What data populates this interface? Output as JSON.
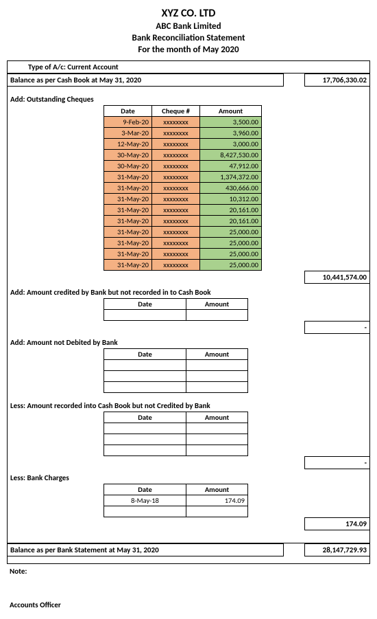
{
  "header": {
    "company": "XYZ CO. LTD",
    "bank": "ABC Bank Limited",
    "title": "Bank Reconciliation Statement",
    "period": "For the month of May 2020"
  },
  "account_type": "Type of A/c: Current Account",
  "opening": {
    "label": "Balance as per Cash Book at May 31, 2020",
    "value": "17,706,330.02"
  },
  "outstanding": {
    "label": "Add: Outstanding Cheques",
    "headers": {
      "date": "Date",
      "cheque": "Cheque #",
      "amount": "Amount"
    },
    "rows": [
      {
        "date": "9-Feb-20",
        "cheque": "xxxxxxxx",
        "amount": "3,500.00"
      },
      {
        "date": "3-Mar-20",
        "cheque": "xxxxxxxx",
        "amount": "3,960.00"
      },
      {
        "date": "12-May-20",
        "cheque": "xxxxxxxx",
        "amount": "3,000.00"
      },
      {
        "date": "30-May-20",
        "cheque": "xxxxxxxx",
        "amount": "8,427,530.00"
      },
      {
        "date": "30-May-20",
        "cheque": "xxxxxxxx",
        "amount": "47,912.00"
      },
      {
        "date": "31-May-20",
        "cheque": "xxxxxxxx",
        "amount": "1,374,372.00"
      },
      {
        "date": "31-May-20",
        "cheque": "xxxxxxxx",
        "amount": "430,666.00"
      },
      {
        "date": "31-May-20",
        "cheque": "xxxxxxxx",
        "amount": "10,312.00"
      },
      {
        "date": "31-May-20",
        "cheque": "xxxxxxxx",
        "amount": "20,161.00"
      },
      {
        "date": "31-May-20",
        "cheque": "xxxxxxxx",
        "amount": "20,161.00"
      },
      {
        "date": "31-May-20",
        "cheque": "xxxxxxxx",
        "amount": "25,000.00"
      },
      {
        "date": "31-May-20",
        "cheque": "xxxxxxxx",
        "amount": "25,000.00"
      },
      {
        "date": "31-May-20",
        "cheque": "xxxxxxxx",
        "amount": "25,000.00"
      },
      {
        "date": "31-May-20",
        "cheque": "xxxxxxxx",
        "amount": "25,000.00"
      }
    ],
    "subtotal": "10,441,574.00"
  },
  "credited_not_recorded": {
    "label": "Add: Amount credited by Bank but not recorded in to Cash Book",
    "headers": {
      "date": "Date",
      "amount": "Amount"
    },
    "subtotal": "-"
  },
  "not_debited": {
    "label": "Add: Amount not Debited by Bank",
    "headers": {
      "date": "Date",
      "amount": "Amount"
    }
  },
  "recorded_not_credited": {
    "label": "Less: Amount recorded into Cash Book but not Credited by Bank",
    "headers": {
      "date": "Date",
      "amount": "Amount"
    },
    "subtotal": "-"
  },
  "bank_charges": {
    "label": "Less: Bank Charges",
    "headers": {
      "date": "Date",
      "amount": "Amount"
    },
    "rows": [
      {
        "date": "8-May-18",
        "amount": "174.09"
      }
    ],
    "subtotal": "174.09"
  },
  "closing": {
    "label": "Balance as per Bank Statement at May 31, 2020",
    "value": "28,147,729.93"
  },
  "note_label": "Note:",
  "officer_label": "Accounts Officer",
  "colors": {
    "orange": "#f4b183",
    "green": "#a9d18e",
    "border": "#000000",
    "background": "#ffffff"
  }
}
